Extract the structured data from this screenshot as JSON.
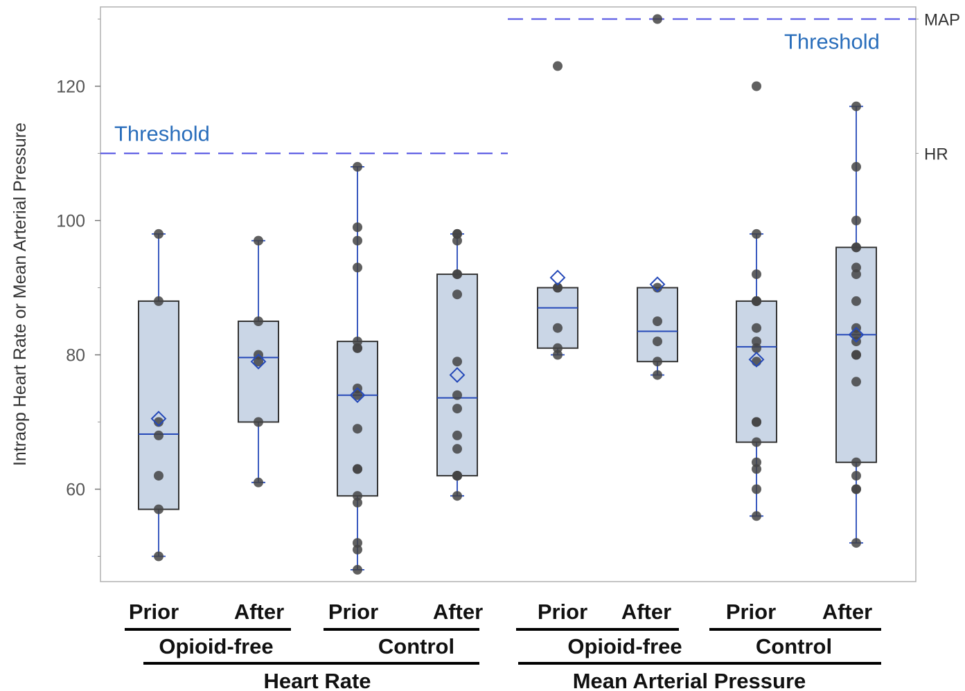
{
  "chart_data": {
    "type": "box",
    "ylabel": "Intraop Heart Rate or Mean Arterial Pressure",
    "ylim": [
      46.5,
      131
    ],
    "yticks": [
      60,
      80,
      100,
      120
    ],
    "grid": false,
    "groups": [
      {
        "measure": "Heart Rate",
        "group": "Opioid-free",
        "time": "Prior",
        "box": {
          "q1": 57,
          "median": 68.2,
          "q3": 88,
          "whisker_low": 50,
          "whisker_high": 98
        },
        "mean": 70.5,
        "points": [
          50,
          57,
          62,
          68,
          70,
          88,
          98
        ]
      },
      {
        "measure": "Heart Rate",
        "group": "Opioid-free",
        "time": "After",
        "box": {
          "q1": 70,
          "median": 79.6,
          "q3": 85,
          "whisker_low": 61,
          "whisker_high": 97
        },
        "mean": 79,
        "points": [
          61,
          70,
          79,
          80,
          85,
          97
        ]
      },
      {
        "measure": "Heart Rate",
        "group": "Control",
        "time": "Prior",
        "box": {
          "q1": 59,
          "median": 74,
          "q3": 82,
          "whisker_low": 48,
          "whisker_high": 108
        },
        "mean": 74,
        "points": [
          48,
          51,
          52,
          58,
          59,
          63,
          63,
          69,
          74,
          75,
          81,
          81,
          82,
          93,
          97,
          99,
          108
        ]
      },
      {
        "measure": "Heart Rate",
        "group": "Control",
        "time": "After",
        "box": {
          "q1": 62,
          "median": 73.6,
          "q3": 92,
          "whisker_low": 59,
          "whisker_high": 98
        },
        "mean": 77,
        "points": [
          59,
          62,
          62,
          62,
          62,
          62,
          66,
          68,
          72,
          74,
          79,
          89,
          92,
          92,
          97,
          98,
          98
        ]
      },
      {
        "measure": "Mean Arterial Pressure",
        "group": "Opioid-free",
        "time": "Prior",
        "box": {
          "q1": 81,
          "median": 87,
          "q3": 90,
          "whisker_low": 80,
          "whisker_high": 90
        },
        "mean": 91.5,
        "points": [
          80,
          81,
          84,
          90,
          90,
          123
        ]
      },
      {
        "measure": "Mean Arterial Pressure",
        "group": "Opioid-free",
        "time": "After",
        "box": {
          "q1": 79,
          "median": 83.5,
          "q3": 90,
          "whisker_low": 77,
          "whisker_high": 90
        },
        "mean": 90.5,
        "points": [
          77,
          79,
          82,
          85,
          90,
          130
        ]
      },
      {
        "measure": "Mean Arterial Pressure",
        "group": "Control",
        "time": "Prior",
        "box": {
          "q1": 67,
          "median": 81.2,
          "q3": 88,
          "whisker_low": 56,
          "whisker_high": 98
        },
        "mean": 79.3,
        "points": [
          56,
          60,
          63,
          64,
          67,
          70,
          70,
          79,
          81,
          82,
          84,
          88,
          88,
          88,
          88,
          88,
          92,
          98,
          120
        ]
      },
      {
        "measure": "Mean Arterial Pressure",
        "group": "Control",
        "time": "After",
        "box": {
          "q1": 64,
          "median": 83,
          "q3": 96,
          "whisker_low": 52,
          "whisker_high": 117
        },
        "mean": 83,
        "points": [
          52,
          60,
          60,
          62,
          64,
          76,
          80,
          80,
          82,
          83,
          84,
          88,
          92,
          93,
          96,
          96,
          100,
          108,
          117
        ]
      }
    ],
    "reference_lines": [
      {
        "label": "HR",
        "value": 110,
        "annotation": "Threshold",
        "spans": "Heart Rate"
      },
      {
        "label": "MAP",
        "value": 130,
        "annotation": "Threshold",
        "spans": "Mean Arterial Pressure"
      }
    ],
    "x_axis_labels": {
      "level1": [
        "Prior",
        "After",
        "Prior",
        "After",
        "Prior",
        "After",
        "Prior",
        "After"
      ],
      "level2": [
        "Opioid-free",
        "Control",
        "Opioid-free",
        "Control"
      ],
      "level3": [
        "Heart Rate",
        "Mean Arterial Pressure"
      ]
    },
    "colors": {
      "box_fill": "#cad6e6",
      "box_stroke": "#333333",
      "median": "#2448b8",
      "whisker": "#2448b8",
      "mean_marker": "#2448b8",
      "points": "#444444",
      "threshold_line": "#4a4ae0",
      "threshold_text": "#2a6ebb"
    }
  }
}
